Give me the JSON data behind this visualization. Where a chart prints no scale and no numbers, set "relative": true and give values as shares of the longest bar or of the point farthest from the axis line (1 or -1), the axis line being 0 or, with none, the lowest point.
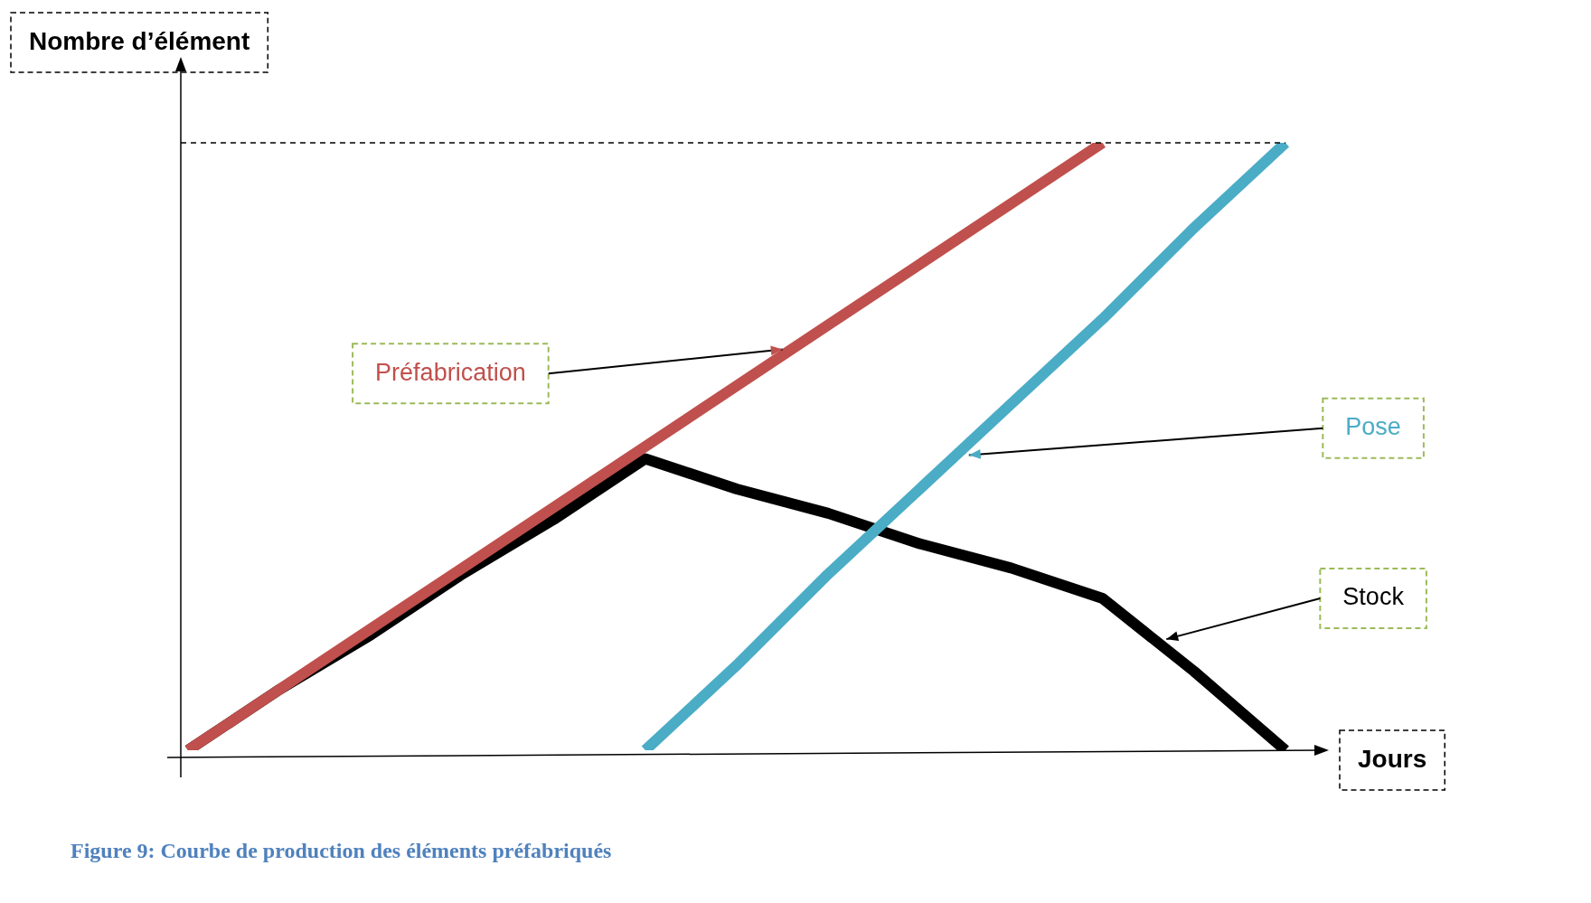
{
  "chart_data": {
    "type": "line",
    "relative": true,
    "xlabel": "Jours",
    "ylabel": "Nombre d’élément",
    "annotations": [
      "Figure 9: Courbe de production des éléments préfabriqués"
    ],
    "categories": [
      null,
      null,
      null,
      null,
      null,
      null,
      null,
      null,
      null,
      null,
      null,
      null,
      null
    ],
    "series": [
      {
        "name": "Préfabrication",
        "color": "#c0504d",
        "values": [
          0,
          0.1,
          0.2,
          0.3,
          0.4,
          0.5,
          0.6,
          0.7,
          0.8,
          0.9,
          1,
          null,
          null
        ]
      },
      {
        "name": "Pose",
        "color": "#4bacc6",
        "values": [
          null,
          null,
          null,
          null,
          null,
          0,
          0.14,
          0.29,
          0.43,
          0.57,
          0.71,
          0.86,
          1
        ]
      },
      {
        "name": "Stock",
        "color": "#000000",
        "values": [
          0,
          0.1,
          0.19,
          0.29,
          0.38,
          0.48,
          0.43,
          0.39,
          0.34,
          0.3,
          0.25,
          0.13,
          0
        ]
      }
    ],
    "ref_lines": [
      {
        "axis": "y",
        "value": 1,
        "color": "#000000",
        "line_style": "dashed"
      }
    ],
    "legend": false,
    "grid": false,
    "tick_labels": false,
    "marker": "none",
    "line_style": "solid"
  }
}
